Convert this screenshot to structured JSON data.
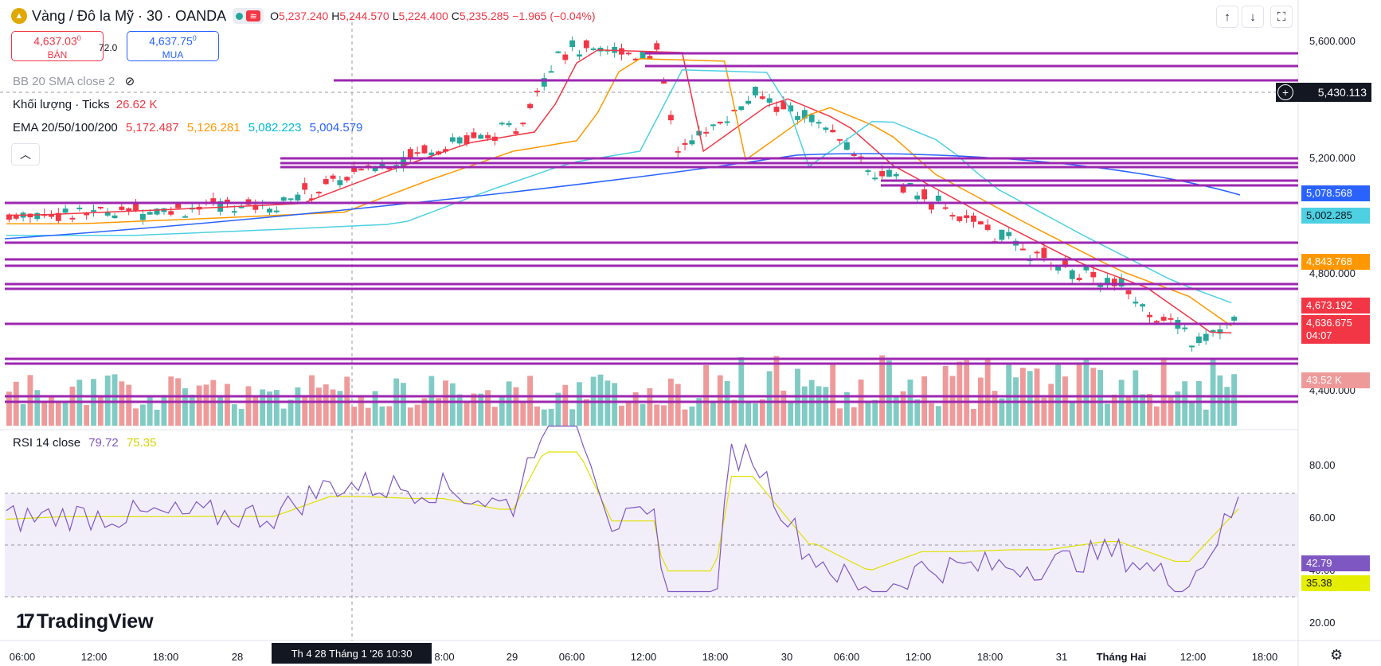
{
  "header": {
    "title": "Vàng / Đô la Mỹ · 30 · OANDA",
    "open_label": "O",
    "open": "5,237.240",
    "high_label": "H",
    "high": "5,244.570",
    "low_label": "L",
    "low": "5,224.400",
    "close_label": "C",
    "close": "5,235.285",
    "change": "−1.965 (−0.04%)"
  },
  "trade": {
    "sell_price": "4,637.03",
    "sell_price_sup": "0",
    "sell_label": "BÁN",
    "spread": "72.0",
    "buy_price": "4,637.75",
    "buy_price_sup": "0",
    "buy_label": "MUA"
  },
  "indicators": {
    "bb": "BB 20 SMA close 2",
    "volume_label": "Khối lượng · Ticks",
    "volume_value": "26.62 K",
    "ema_label": "EMA 20/50/100/200",
    "ema20": "5,172.487",
    "ema50": "5,126.281",
    "ema100": "5,082.223",
    "ema200": "5,004.579",
    "rsi_label": "RSI 14 close",
    "rsi_value": "79.72",
    "rsi_ma_value": "75.35"
  },
  "price_axis": [
    "5,600.000",
    "5,200.000",
    "4,800.000",
    "4,400.000"
  ],
  "price_tags": {
    "crosshair": "5,430.113",
    "ema200": "5,078.568",
    "ema100": "5,002.285",
    "ema50": "4,843.768",
    "ema20": "4,673.192",
    "last_price": "4,636.675",
    "countdown": "04:07",
    "volume": "43.52 K"
  },
  "rsi_axis": [
    "80.00",
    "60.00",
    "40.00",
    "20.00"
  ],
  "rsi_tags": {
    "rsi": "42.79",
    "rsi_ma": "35.38"
  },
  "time_axis": [
    "06:00",
    "12:00",
    "18:00",
    "28",
    "8:00",
    "29",
    "06:00",
    "12:00",
    "18:00",
    "30",
    "06:00",
    "12:00",
    "18:00",
    "31",
    "Tháng Hai",
    "12:00",
    "18:00"
  ],
  "crosshair_time": "Th 4 28 Tháng 1 '26   10:30",
  "brand": "TradingView",
  "colors": {
    "up": "#26a69a",
    "down": "#f23645",
    "level": "#9c27b0",
    "ema20": "#f23645",
    "ema50": "#ff9800",
    "ema100": "#4dd0e1",
    "ema200": "#2962ff",
    "rsi": "#7e57c2",
    "rsi_ma": "#e0e000"
  },
  "icons": [
    "gold-coin-icon",
    "market-open-dot-icon",
    "wave-icon",
    "arrow-up-icon",
    "arrow-down-icon",
    "fullscreen-icon",
    "eye-off-icon",
    "chevron-up-icon",
    "plus-circle-icon",
    "settings-gear-icon"
  ]
}
